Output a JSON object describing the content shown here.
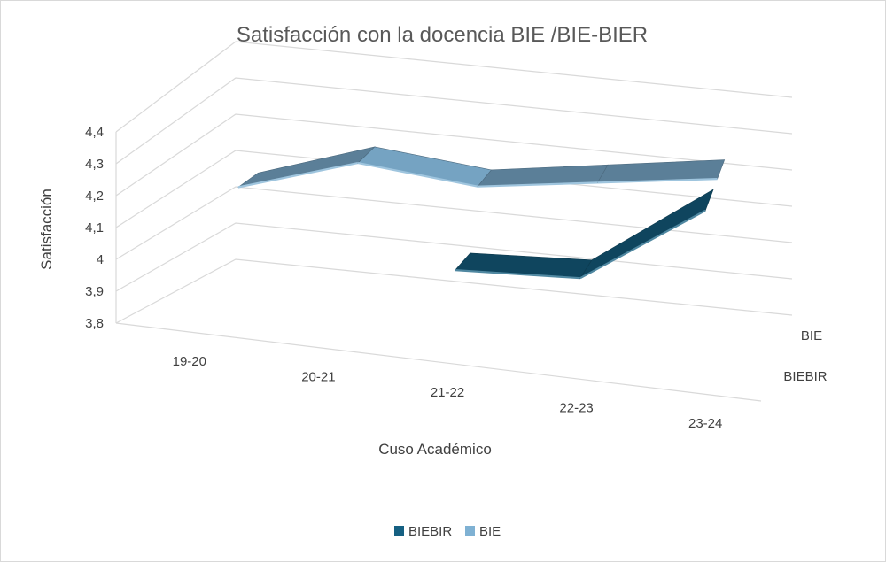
{
  "chart_data": {
    "type": "line",
    "title": "Satisfacción con la docencia BIE /BIE-BIER",
    "xlabel": "Cuso Académico",
    "ylabel": "Satisfacción",
    "categories": [
      "19-20",
      "20-21",
      "21-22",
      "22-23",
      "23-24"
    ],
    "y_ticks": [
      "3,8",
      "3,9",
      "4",
      "4,1",
      "4,2",
      "4,3",
      "4,4"
    ],
    "ylim": [
      3.8,
      4.4
    ],
    "depth_labels": [
      "BIE",
      "BIEBIR"
    ],
    "series": [
      {
        "name": "BIEBIR",
        "color": "#156082",
        "values": [
          null,
          null,
          4.03,
          4.05,
          4.3
        ]
      },
      {
        "name": "BIE",
        "color": "#7fb1d3",
        "values": [
          4.12,
          4.23,
          4.2,
          4.25,
          4.3
        ]
      }
    ],
    "legend": {
      "position": "bottom",
      "items": [
        "BIEBIR",
        "BIE"
      ]
    },
    "grid": true,
    "style": "3d-line"
  }
}
